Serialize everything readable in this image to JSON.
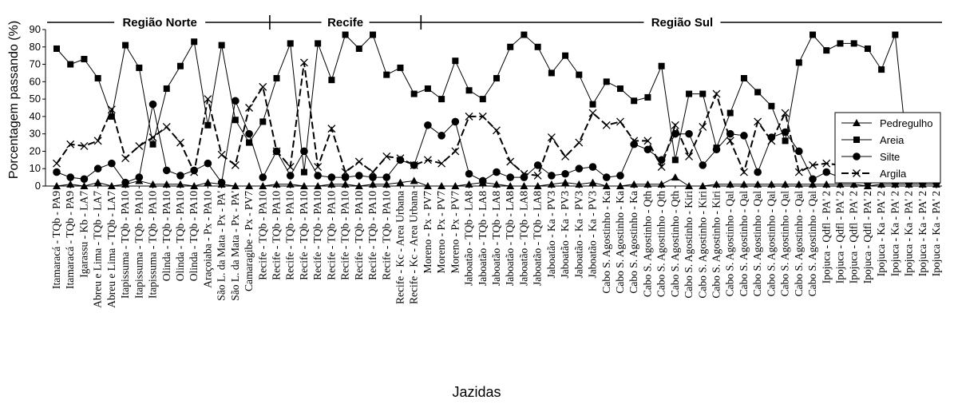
{
  "chart_data": {
    "type": "line",
    "ylabel": "Porcentagem passando (%)",
    "xlabel": "Jazidas",
    "ylim": [
      0,
      90
    ],
    "yticks": [
      0,
      10,
      20,
      30,
      40,
      50,
      60,
      70,
      80,
      90
    ],
    "grid": false,
    "legend_position": "right",
    "regions": [
      {
        "label": "Região Norte",
        "start": 0,
        "end": 15
      },
      {
        "label": "Recife",
        "start": 16,
        "end": 26
      },
      {
        "label": "Região Sul",
        "start": 27,
        "end": 64
      }
    ],
    "categories": [
      "Itamaracá - TQb - PA9",
      "Itamaracá - TQb - PA9",
      "Igarassu - Kb - LA7",
      "Abreu e Lima - TQb - LA7",
      "Abreu e Lima - TQb - LA7",
      "Itapissuma - TQb - PA10",
      "Itapissuma - TQb - PA10",
      "Itapissuma - TQb - PA10",
      "Olinda - TQb - PA10",
      "Olinda - TQb - PA10",
      "Olinda - TQb - PA10",
      "Araçoiaba - Px - PA10",
      "São L. da Mata - Px - PA'",
      "São L. da Mata - Px - PA'",
      "Camaragibe - Px - PV7",
      "Recife - TQb - PA10",
      "Recife - TQb - PA10",
      "Recife - TQb - PA10",
      "Recife - TQb - PA10",
      "Recife - TQb - PA10",
      "Recife - TQb - PA10",
      "Recife - TQb - PA10",
      "Recife - TQb - PA10",
      "Recife - TQb - PA10",
      "Recife - TQb - PA10",
      "Recife - Kc - Area Urbana",
      "Recife - Kc - Area Urbana",
      "Moreno - Px - PV7",
      "Moreno - Px - PV7",
      "Moreno - Px - PV7",
      "Jaboatão - TQb - LA8",
      "Jaboatão - TQb - LA8",
      "Jaboatão - TQb - LA8",
      "Jaboatão - TQb - LA8",
      "Jaboatão - TQb - LA8",
      "Jaboatão - TQb - LA8",
      "Jaboatão - Ka - PV3",
      "Jaboatão - Ka - PV3",
      "Jaboatão - Ka - PV3",
      "Jaboatão - Ka - PV3",
      "Cabo S. Agostinho - Ka",
      "Cabo S. Agostinho - Ka",
      "Cabo S. Agostinho - Ka",
      "Cabo S. Agostinho - Qth",
      "Cabo S. Agostinho - Qth",
      "Cabo S. Agostinho - Qth",
      "Cabo S. Agostinho - Kiri",
      "Cabo S. Agostinho - Kiri",
      "Cabo S. Agostinho - Kiri",
      "Cabo S. Agostinho - Qal",
      "Cabo S. Agostinho - Qal",
      "Cabo S. Agostinho - Qal",
      "Cabo S. Agostinho - Qal",
      "Cabo S. Agostinho - Qal",
      "Cabo S. Agostinho - Qal",
      "Cabo S. Agostinho - Qal",
      "Ipojuca - Qdfl - PA' 2",
      "Ipojuca - Qdfl - PA' 2",
      "Ipojuca - Qdfl - PA' 2",
      "Ipojuca - Qdfl - PA' 2",
      "Ipojuca - Ka - PA' 2",
      "Ipojuca - Ka - PA' 2",
      "Ipojuca - Ka - PA' 2",
      "Ipojuca - Ka - PA' 2",
      "Ipojuca - Ka - PA' 2"
    ],
    "series": [
      {
        "name": "Pedregulho",
        "marker": "triangle",
        "dash": false,
        "values": [
          0,
          1,
          0,
          2,
          0,
          1,
          3,
          1,
          1,
          1,
          0,
          2,
          1,
          0,
          0,
          0,
          1,
          1,
          0,
          0,
          1,
          1,
          0,
          1,
          1,
          2,
          3,
          0,
          0,
          0,
          1,
          2,
          1,
          0,
          0,
          0,
          1,
          2,
          1,
          2,
          0,
          0,
          1,
          1,
          1,
          5,
          0,
          0,
          1,
          1,
          1,
          1,
          1,
          1,
          1,
          1,
          1,
          1,
          1,
          0,
          1,
          1,
          1,
          1,
          1
        ]
      },
      {
        "name": "Areia",
        "marker": "square",
        "dash": false,
        "values": [
          79,
          70,
          73,
          62,
          40,
          81,
          68,
          24,
          56,
          69,
          83,
          35,
          81,
          38,
          25,
          37,
          62,
          82,
          8,
          82,
          61,
          87,
          79,
          87,
          64,
          68,
          53,
          56,
          50,
          72,
          55,
          50,
          62,
          80,
          87,
          80,
          65,
          75,
          64,
          47,
          60,
          56,
          49,
          51,
          69,
          15,
          53,
          53,
          22,
          42,
          62,
          54,
          46,
          26,
          71,
          87,
          78,
          82,
          82,
          79,
          67,
          87,
          10,
          10,
          10
        ]
      },
      {
        "name": "Silte",
        "marker": "circle",
        "dash": false,
        "values": [
          8,
          5,
          4,
          10,
          13,
          2,
          5,
          47,
          9,
          6,
          9,
          13,
          2,
          49,
          30,
          5,
          20,
          6,
          20,
          6,
          5,
          5,
          6,
          5,
          5,
          15,
          12,
          35,
          29,
          37,
          7,
          3,
          8,
          5,
          5,
          12,
          6,
          7,
          10,
          11,
          5,
          6,
          24,
          21,
          15,
          30,
          30,
          12,
          21,
          30,
          29,
          8,
          28,
          31,
          20,
          4,
          8,
          5,
          6,
          2,
          6,
          2,
          2,
          2,
          2
        ]
      },
      {
        "name": "Argila",
        "marker": "x",
        "dash": true,
        "values": [
          13,
          24,
          23,
          26,
          44,
          16,
          23,
          28,
          34,
          25,
          8,
          50,
          18,
          12,
          45,
          57,
          20,
          11,
          71,
          11,
          33,
          8,
          14,
          8,
          17,
          16,
          12,
          15,
          13,
          20,
          40,
          40,
          32,
          14,
          7,
          6,
          28,
          17,
          25,
          42,
          35,
          37,
          26,
          26,
          11,
          35,
          17,
          34,
          53,
          26,
          8,
          37,
          26,
          42,
          8,
          12,
          13,
          12,
          11,
          15,
          5,
          12,
          12,
          12,
          12
        ]
      }
    ]
  }
}
